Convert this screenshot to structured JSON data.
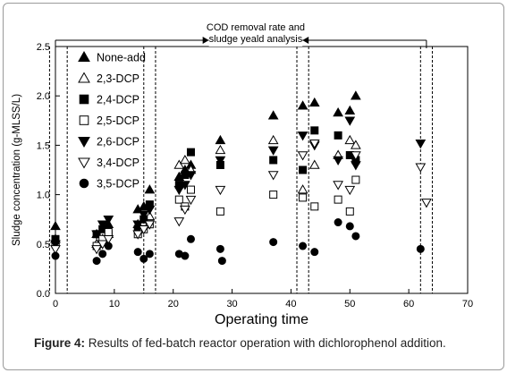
{
  "caption": {
    "label": "Figure 4:",
    "text": " Results of fed-batch reactor operation with dichlorophenol addition."
  },
  "chart_data": {
    "type": "scatter",
    "xlabel": "Operating time",
    "ylabel": "Sludge concentration (g-MLSS/L)",
    "xlim": [
      0,
      70
    ],
    "ylim": [
      0,
      2.5
    ],
    "xticks": [
      "0",
      "10",
      "20",
      "30",
      "40",
      "50",
      "60",
      "70"
    ],
    "yticks": [
      "0.0",
      "0.5",
      "1.0",
      "1.5",
      "2.0",
      "2.5"
    ],
    "grid": false,
    "legend_position": "top-left",
    "annotation": {
      "text_line1": "COD removal rate and",
      "text_line2": "sludge yeald analysis",
      "x_start": 0,
      "x_mid": 25,
      "x_mid2": 43,
      "x_end": 63
    },
    "vertical_dashed_lines": [
      -1,
      2,
      15,
      17,
      41,
      43,
      62,
      64
    ],
    "series": [
      {
        "name": "None-add",
        "marker": "triangle-up",
        "fill": "#000000",
        "points": [
          [
            0,
            0.68
          ],
          [
            7,
            0.6
          ],
          [
            8,
            0.65
          ],
          [
            9,
            0.7
          ],
          [
            14,
            0.85
          ],
          [
            15,
            0.88
          ],
          [
            16,
            1.05
          ],
          [
            21,
            1.18
          ],
          [
            22,
            1.25
          ],
          [
            23,
            1.3
          ],
          [
            28,
            1.55
          ],
          [
            37,
            1.8
          ],
          [
            42,
            1.9
          ],
          [
            44,
            1.93
          ],
          [
            48,
            1.83
          ],
          [
            50,
            1.85
          ],
          [
            51,
            2.0
          ]
        ]
      },
      {
        "name": "2,3-DCP",
        "marker": "triangle-up",
        "fill": "none",
        "points": [
          [
            0,
            0.55
          ],
          [
            7,
            0.5
          ],
          [
            8,
            0.55
          ],
          [
            9,
            0.6
          ],
          [
            14,
            0.7
          ],
          [
            15,
            0.75
          ],
          [
            16,
            0.78
          ],
          [
            21,
            1.3
          ],
          [
            22,
            1.35
          ],
          [
            23,
            1.25
          ],
          [
            28,
            1.45
          ],
          [
            37,
            1.55
          ],
          [
            42,
            1.05
          ],
          [
            44,
            1.3
          ],
          [
            48,
            1.4
          ],
          [
            50,
            1.55
          ],
          [
            51,
            1.5
          ]
        ]
      },
      {
        "name": "2,4-DCP",
        "marker": "square",
        "fill": "#000000",
        "points": [
          [
            0,
            0.55
          ],
          [
            7,
            0.6
          ],
          [
            8,
            0.65
          ],
          [
            9,
            0.6
          ],
          [
            14,
            0.65
          ],
          [
            15,
            0.75
          ],
          [
            16,
            0.9
          ],
          [
            21,
            1.1
          ],
          [
            22,
            1.2
          ],
          [
            23,
            1.43
          ],
          [
            28,
            1.3
          ],
          [
            37,
            1.35
          ],
          [
            42,
            1.25
          ],
          [
            44,
            1.65
          ],
          [
            48,
            1.6
          ],
          [
            50,
            1.4
          ],
          [
            51,
            1.35
          ]
        ]
      },
      {
        "name": "2,5-DCP",
        "marker": "square",
        "fill": "none",
        "points": [
          [
            0,
            0.5
          ],
          [
            7,
            0.48
          ],
          [
            8,
            0.55
          ],
          [
            9,
            0.62
          ],
          [
            14,
            0.6
          ],
          [
            15,
            0.65
          ],
          [
            16,
            0.7
          ],
          [
            21,
            0.95
          ],
          [
            22,
            0.88
          ],
          [
            23,
            1.05
          ],
          [
            28,
            0.83
          ],
          [
            37,
            1.0
          ],
          [
            42,
            0.97
          ],
          [
            44,
            0.88
          ],
          [
            48,
            0.95
          ],
          [
            50,
            0.83
          ],
          [
            51,
            1.15
          ]
        ]
      },
      {
        "name": "2,6-DCP",
        "marker": "triangle-down",
        "fill": "#000000",
        "points": [
          [
            0,
            0.5
          ],
          [
            7,
            0.6
          ],
          [
            8,
            0.7
          ],
          [
            9,
            0.75
          ],
          [
            14,
            0.7
          ],
          [
            15,
            0.8
          ],
          [
            16,
            0.85
          ],
          [
            21,
            1.05
          ],
          [
            22,
            1.1
          ],
          [
            23,
            1.2
          ],
          [
            28,
            1.35
          ],
          [
            37,
            1.45
          ],
          [
            42,
            1.6
          ],
          [
            44,
            1.5
          ],
          [
            48,
            1.35
          ],
          [
            50,
            1.75
          ],
          [
            51,
            1.3
          ],
          [
            62,
            1.52
          ]
        ]
      },
      {
        "name": "3,4-DCP",
        "marker": "triangle-down",
        "fill": "none",
        "points": [
          [
            0,
            0.45
          ],
          [
            7,
            0.45
          ],
          [
            8,
            0.5
          ],
          [
            9,
            0.55
          ],
          [
            14,
            0.6
          ],
          [
            15,
            0.65
          ],
          [
            16,
            0.7
          ],
          [
            21,
            0.73
          ],
          [
            22,
            0.85
          ],
          [
            23,
            0.95
          ],
          [
            28,
            1.05
          ],
          [
            37,
            1.2
          ],
          [
            42,
            1.4
          ],
          [
            44,
            1.52
          ],
          [
            48,
            1.1
          ],
          [
            50,
            1.05
          ],
          [
            51,
            1.4
          ],
          [
            62,
            1.28
          ],
          [
            63,
            0.92
          ]
        ]
      },
      {
        "name": "3,5-DCP",
        "marker": "circle",
        "fill": "#000000",
        "points": [
          [
            0,
            0.38
          ],
          [
            7,
            0.33
          ],
          [
            8,
            0.4
          ],
          [
            9,
            0.48
          ],
          [
            14,
            0.42
          ],
          [
            15,
            0.35
          ],
          [
            16,
            0.4
          ],
          [
            21,
            0.4
          ],
          [
            22,
            0.38
          ],
          [
            23,
            0.55
          ],
          [
            28,
            0.45
          ],
          [
            28.3,
            0.33
          ],
          [
            37,
            0.52
          ],
          [
            42,
            0.48
          ],
          [
            44,
            0.42
          ],
          [
            48,
            0.72
          ],
          [
            50,
            0.68
          ],
          [
            51,
            0.58
          ],
          [
            62,
            0.45
          ]
        ]
      }
    ]
  }
}
